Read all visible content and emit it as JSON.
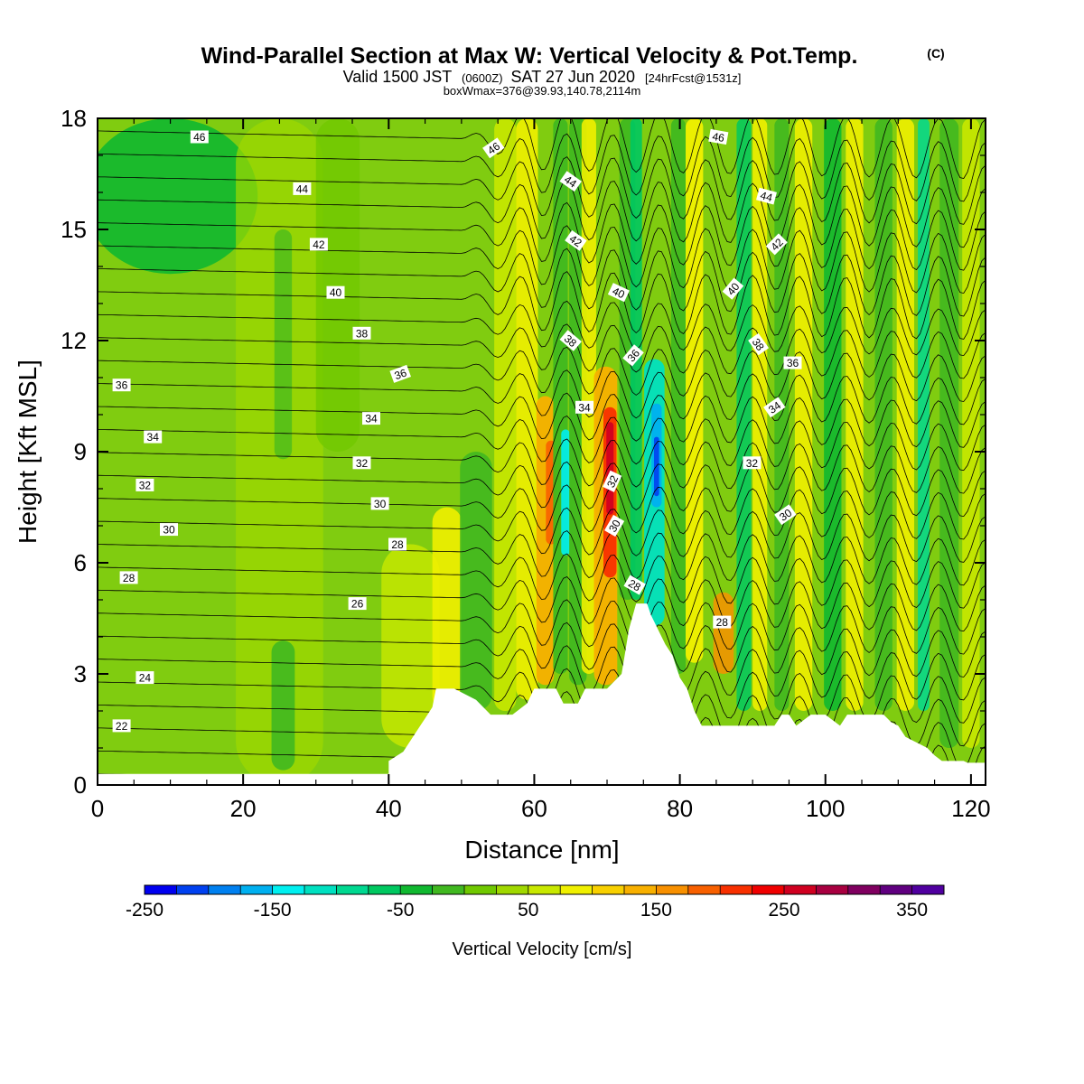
{
  "header": {
    "title": "Wind-Parallel Section at Max W: Vertical Velocity & Pot.Temp.",
    "title_mark": "(C)",
    "valid_prefix": "Valid 1500 JST",
    "valid_utc": "(0600Z)",
    "valid_date": "SAT 27 Jun 2020",
    "forecast": "[24hrFcst@1531z]",
    "boxwmax": "boxWmax=376@39.93,140.78,2114m"
  },
  "colorbar": {
    "label": "Vertical Velocity [cm/s]",
    "min": -250,
    "max": 375,
    "step": 25,
    "tick_labels": [
      "-250",
      "-150",
      "-50",
      "50",
      "150",
      "250",
      "350"
    ],
    "colors": [
      "#0000f0",
      "#0040f0",
      "#0080f0",
      "#00b0f0",
      "#00f0f0",
      "#00e0c0",
      "#00d890",
      "#00c860",
      "#10b830",
      "#40b820",
      "#70c800",
      "#a0d800",
      "#c8e800",
      "#f0f000",
      "#f8d000",
      "#f8b000",
      "#f89000",
      "#f86000",
      "#f83000",
      "#f00000",
      "#d00020",
      "#a80040",
      "#800060",
      "#600080",
      "#5000a0"
    ]
  },
  "chart_data": {
    "type": "heatmap",
    "xlabel": "Distance [nm]",
    "ylabel": "Height [Kft MSL]",
    "xlim": [
      0,
      122
    ],
    "ylim": [
      0,
      18
    ],
    "xticks": [
      0,
      20,
      40,
      60,
      80,
      100,
      120
    ],
    "yticks": [
      0,
      3,
      6,
      9,
      12,
      15,
      18
    ],
    "shaded_field": "Vertical Velocity [cm/s]",
    "contour_field": "Potential temperature (C)",
    "contour_levels": [
      20,
      22,
      24,
      26,
      28,
      30,
      32,
      34,
      36,
      38,
      40,
      42,
      44,
      46,
      48
    ],
    "contour_labels": [
      {
        "text": "22",
        "x": 3.3,
        "y": 1.6,
        "rot": 0
      },
      {
        "text": "24",
        "x": 6.5,
        "y": 2.9,
        "rot": 0
      },
      {
        "text": "26",
        "x": 35.7,
        "y": 4.9,
        "rot": 0
      },
      {
        "text": "28",
        "x": 4.3,
        "y": 5.6,
        "rot": 0
      },
      {
        "text": "28",
        "x": 41.2,
        "y": 6.5,
        "rot": 0
      },
      {
        "text": "28",
        "x": 73.8,
        "y": 5.4,
        "rot": 30
      },
      {
        "text": "28",
        "x": 85.8,
        "y": 4.4,
        "rot": 0
      },
      {
        "text": "30",
        "x": 9.8,
        "y": 6.9,
        "rot": 0
      },
      {
        "text": "30",
        "x": 38.8,
        "y": 7.6,
        "rot": 0
      },
      {
        "text": "30",
        "x": 71.0,
        "y": 7.0,
        "rot": -60
      },
      {
        "text": "30",
        "x": 94.5,
        "y": 7.3,
        "rot": -35
      },
      {
        "text": "32",
        "x": 6.5,
        "y": 8.1,
        "rot": 0
      },
      {
        "text": "32",
        "x": 36.3,
        "y": 8.7,
        "rot": 0
      },
      {
        "text": "32",
        "x": 70.7,
        "y": 8.2,
        "rot": -65
      },
      {
        "text": "32",
        "x": 89.9,
        "y": 8.7,
        "rot": 0
      },
      {
        "text": "34",
        "x": 7.6,
        "y": 9.4,
        "rot": 0
      },
      {
        "text": "34",
        "x": 37.6,
        "y": 9.9,
        "rot": 0
      },
      {
        "text": "34",
        "x": 66.9,
        "y": 10.2,
        "rot": 0
      },
      {
        "text": "34",
        "x": 93.0,
        "y": 10.2,
        "rot": -35
      },
      {
        "text": "36",
        "x": 3.3,
        "y": 10.8,
        "rot": 0
      },
      {
        "text": "36",
        "x": 41.6,
        "y": 11.1,
        "rot": -20
      },
      {
        "text": "36",
        "x": 73.6,
        "y": 11.6,
        "rot": -50
      },
      {
        "text": "36",
        "x": 95.5,
        "y": 11.4,
        "rot": 0
      },
      {
        "text": "38",
        "x": 36.3,
        "y": 12.2,
        "rot": 0
      },
      {
        "text": "38",
        "x": 65.0,
        "y": 12.0,
        "rot": 40
      },
      {
        "text": "38",
        "x": 90.8,
        "y": 11.9,
        "rot": 55
      },
      {
        "text": "40",
        "x": 32.7,
        "y": 13.3,
        "rot": 0
      },
      {
        "text": "40",
        "x": 71.6,
        "y": 13.3,
        "rot": 25
      },
      {
        "text": "40",
        "x": 87.3,
        "y": 13.4,
        "rot": -50
      },
      {
        "text": "42",
        "x": 30.4,
        "y": 14.6,
        "rot": 0
      },
      {
        "text": "42",
        "x": 65.7,
        "y": 14.7,
        "rot": 35
      },
      {
        "text": "42",
        "x": 93.3,
        "y": 14.6,
        "rot": -45
      },
      {
        "text": "44",
        "x": 28.1,
        "y": 16.1,
        "rot": 0
      },
      {
        "text": "44",
        "x": 65.0,
        "y": 16.3,
        "rot": 35
      },
      {
        "text": "44",
        "x": 91.9,
        "y": 15.9,
        "rot": 15
      },
      {
        "text": "46",
        "x": 14.0,
        "y": 17.5,
        "rot": 0
      },
      {
        "text": "46",
        "x": 54.4,
        "y": 17.2,
        "rot": -35
      },
      {
        "text": "46",
        "x": 85.3,
        "y": 17.5,
        "rot": 10
      }
    ],
    "terrain_profile": [
      [
        0,
        0.3
      ],
      [
        40,
        0.3
      ],
      [
        40,
        0.65
      ],
      [
        42,
        0.9
      ],
      [
        43,
        1.2
      ],
      [
        44,
        1.5
      ],
      [
        45,
        1.8
      ],
      [
        46,
        2.1
      ],
      [
        46.5,
        2.6
      ],
      [
        49,
        2.6
      ],
      [
        52,
        2.3
      ],
      [
        54,
        1.9
      ],
      [
        56,
        1.9
      ],
      [
        57,
        1.9
      ],
      [
        59,
        2.2
      ],
      [
        60,
        2.6
      ],
      [
        63,
        2.6
      ],
      [
        64,
        2.2
      ],
      [
        66,
        2.2
      ],
      [
        67,
        2.6
      ],
      [
        70,
        2.6
      ],
      [
        72,
        3.0
      ],
      [
        72.5,
        3.6
      ],
      [
        73,
        4.2
      ],
      [
        74,
        4.9
      ],
      [
        75.5,
        4.9
      ],
      [
        76,
        4.6
      ],
      [
        77,
        4.2
      ],
      [
        78,
        3.8
      ],
      [
        79,
        3.5
      ],
      [
        80,
        2.9
      ],
      [
        81,
        2.6
      ],
      [
        82,
        2.0
      ],
      [
        83,
        1.6
      ],
      [
        93,
        1.6
      ],
      [
        94,
        1.9
      ],
      [
        95,
        1.9
      ],
      [
        96,
        1.6
      ],
      [
        98,
        1.9
      ],
      [
        100,
        1.9
      ],
      [
        102,
        1.6
      ],
      [
        103,
        1.9
      ],
      [
        108,
        1.9
      ],
      [
        109,
        1.7
      ],
      [
        110,
        1.6
      ],
      [
        111,
        1.3
      ],
      [
        113,
        1.1
      ],
      [
        114,
        1.0
      ],
      [
        115,
        0.8
      ],
      [
        116,
        0.65
      ],
      [
        119,
        0.65
      ],
      [
        119.5,
        0.6
      ],
      [
        122,
        0.6
      ]
    ]
  }
}
